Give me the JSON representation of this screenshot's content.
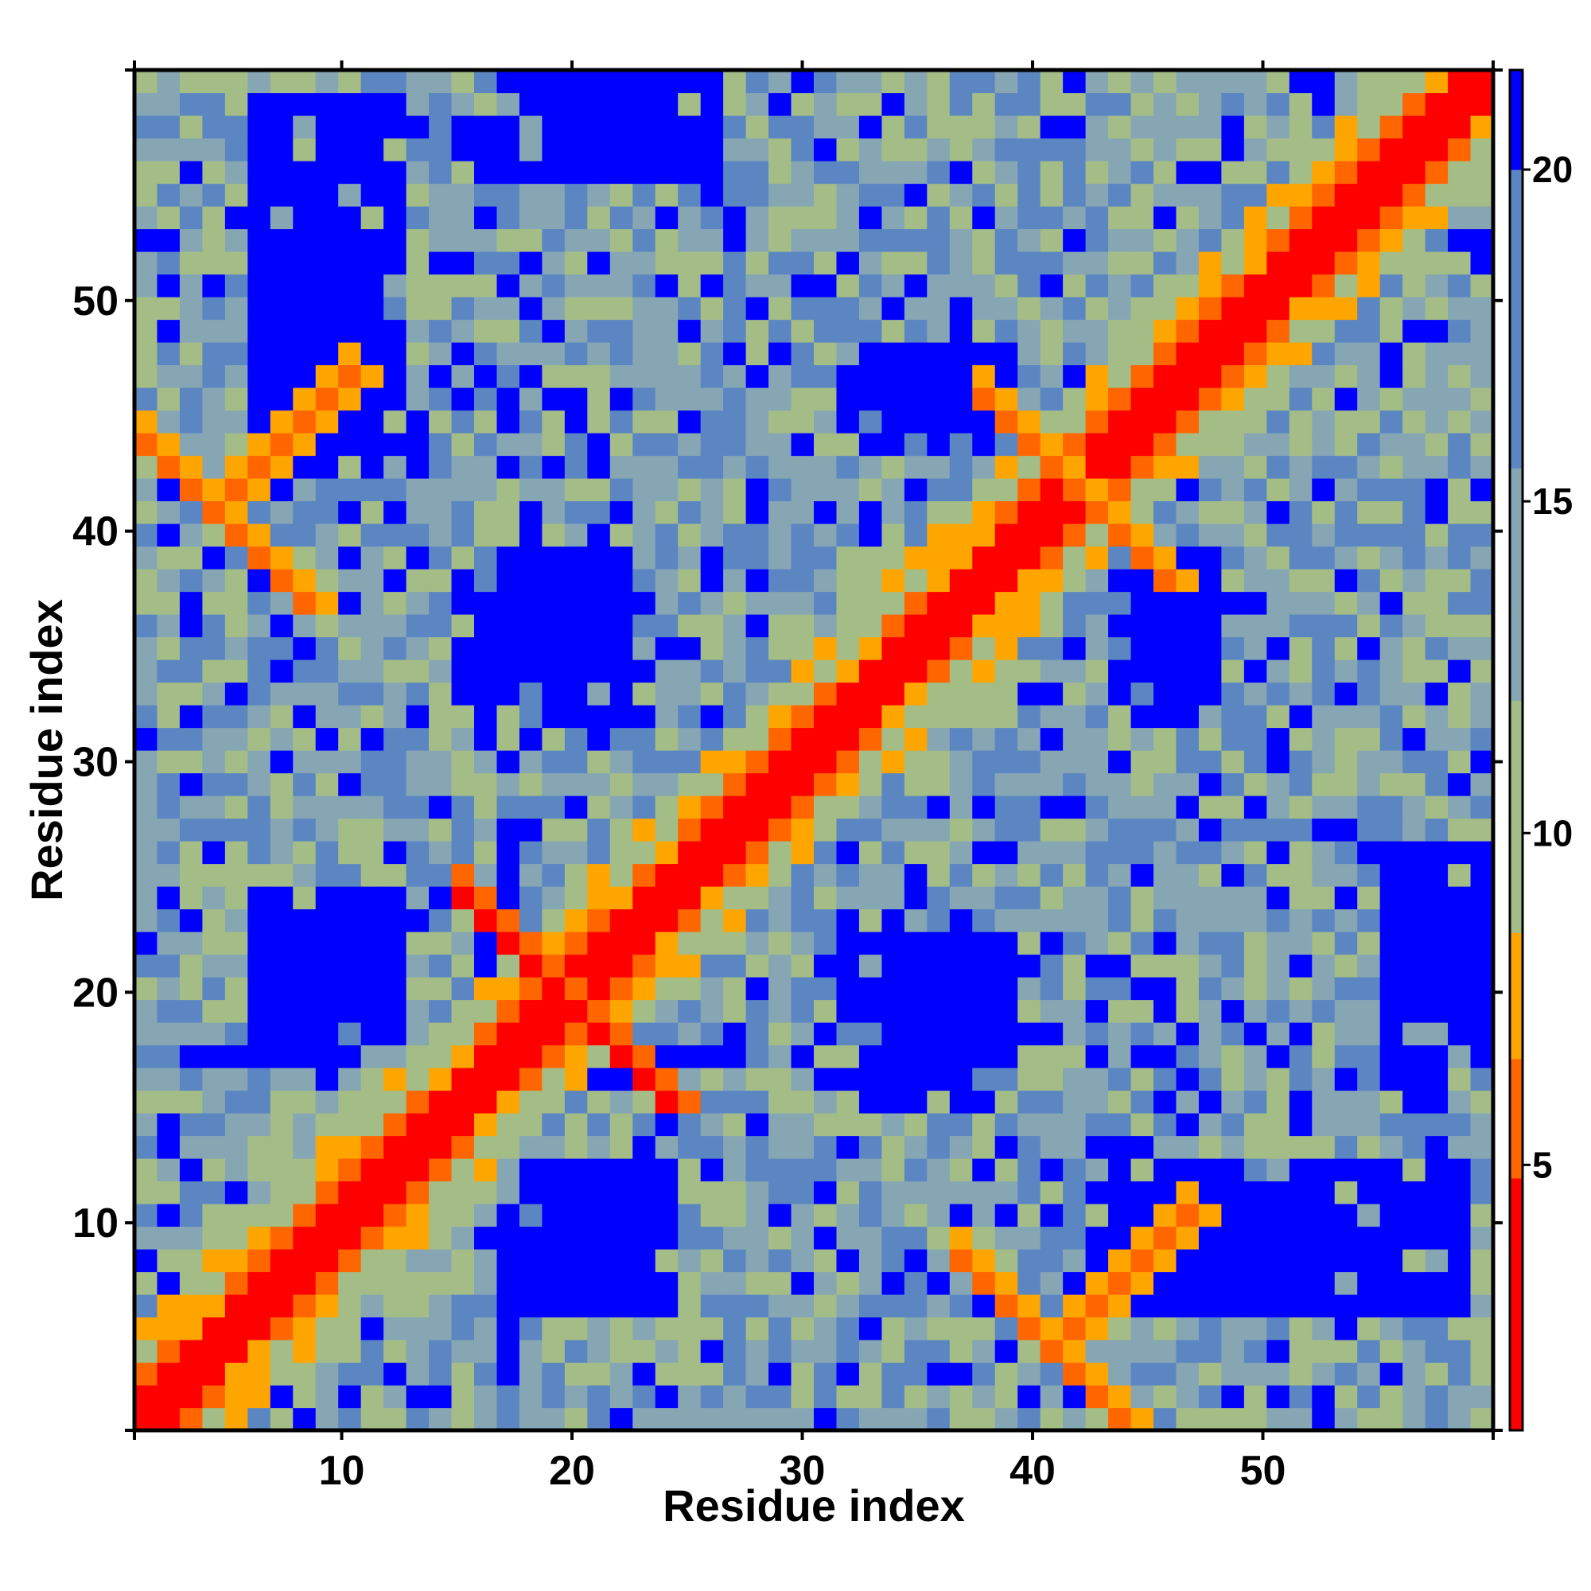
{
  "chart_data": {
    "type": "heatmap",
    "title": "",
    "xlabel": "Residue index",
    "ylabel": "Residue index",
    "n_residues": 60,
    "xlim": [
      1,
      60
    ],
    "ylim": [
      1,
      60
    ],
    "x_ticks": [
      10,
      20,
      30,
      40,
      50
    ],
    "y_ticks": [
      10,
      20,
      30,
      40,
      50
    ],
    "x_tick_labels": [
      "10",
      "20",
      "30",
      "40",
      "50"
    ],
    "y_tick_labels": [
      "10",
      "20",
      "30",
      "40",
      "50"
    ],
    "colorbar": {
      "range": [
        1.0,
        21.5
      ],
      "ticks": [
        5,
        10,
        15,
        20
      ],
      "tick_labels": [
        "5",
        "10",
        "15",
        "20"
      ],
      "bands": [
        {
          "from": 1.0,
          "to": 4.8,
          "color": "#ff0000"
        },
        {
          "from": 4.8,
          "to": 6.6,
          "color": "#ff6600"
        },
        {
          "from": 6.6,
          "to": 8.5,
          "color": "#ffa500"
        },
        {
          "from": 8.5,
          "to": 12.0,
          "color": "#a4bd86"
        },
        {
          "from": 12.0,
          "to": 15.5,
          "color": "#86a6b4"
        },
        {
          "from": 15.5,
          "to": 20.0,
          "color": "#5b86c2"
        },
        {
          "from": 20.0,
          "to": 21.5,
          "color": "#0000ff"
        }
      ]
    },
    "matrix_description": "pairwise residue distance map, symmetric, red along main diagonal",
    "diagonal_band": {
      "width_residues": 2,
      "value": 2.5
    },
    "near_contacts": [
      {
        "i_start": 1,
        "j_start": 44,
        "length": 8,
        "direction": "anti",
        "value": 7.0
      },
      {
        "i_start": 16,
        "j_start": 23,
        "length": 9,
        "direction": "anti",
        "value": 6.0
      },
      {
        "i_start": 5,
        "j_start": 42,
        "length": 6,
        "direction": "parallel",
        "value": 7.5
      },
      {
        "i_start": 39,
        "j_start": 45,
        "length": 8,
        "direction": "anti",
        "value": 7.0
      }
    ],
    "far_regions": [
      {
        "i_range": [
          6,
          12
        ],
        "j_range": [
          17,
          24
        ],
        "value": 21
      },
      {
        "i_range": [
          6,
          12
        ],
        "j_range": [
          44,
          59
        ],
        "value": 21
      },
      {
        "i_range": [
          17,
          24
        ],
        "j_range": [
          6,
          11
        ],
        "value": 21
      },
      {
        "i_range": [
          17,
          22
        ],
        "j_range": [
          33,
          39
        ],
        "value": 21
      },
      {
        "i_range": [
          32,
          39
        ],
        "j_range": [
          15,
          22
        ],
        "value": 21
      },
      {
        "i_range": [
          32,
          39
        ],
        "j_range": [
          45,
          48
        ],
        "value": 21
      },
      {
        "i_range": [
          44,
          53
        ],
        "j_range": [
          6,
          11
        ],
        "value": 21
      },
      {
        "i_range": [
          44,
          48
        ],
        "j_range": [
          33,
          39
        ],
        "value": 21
      },
      {
        "i_range": [
          56,
          60
        ],
        "j_range": [
          16,
          26
        ],
        "value": 21
      }
    ]
  }
}
